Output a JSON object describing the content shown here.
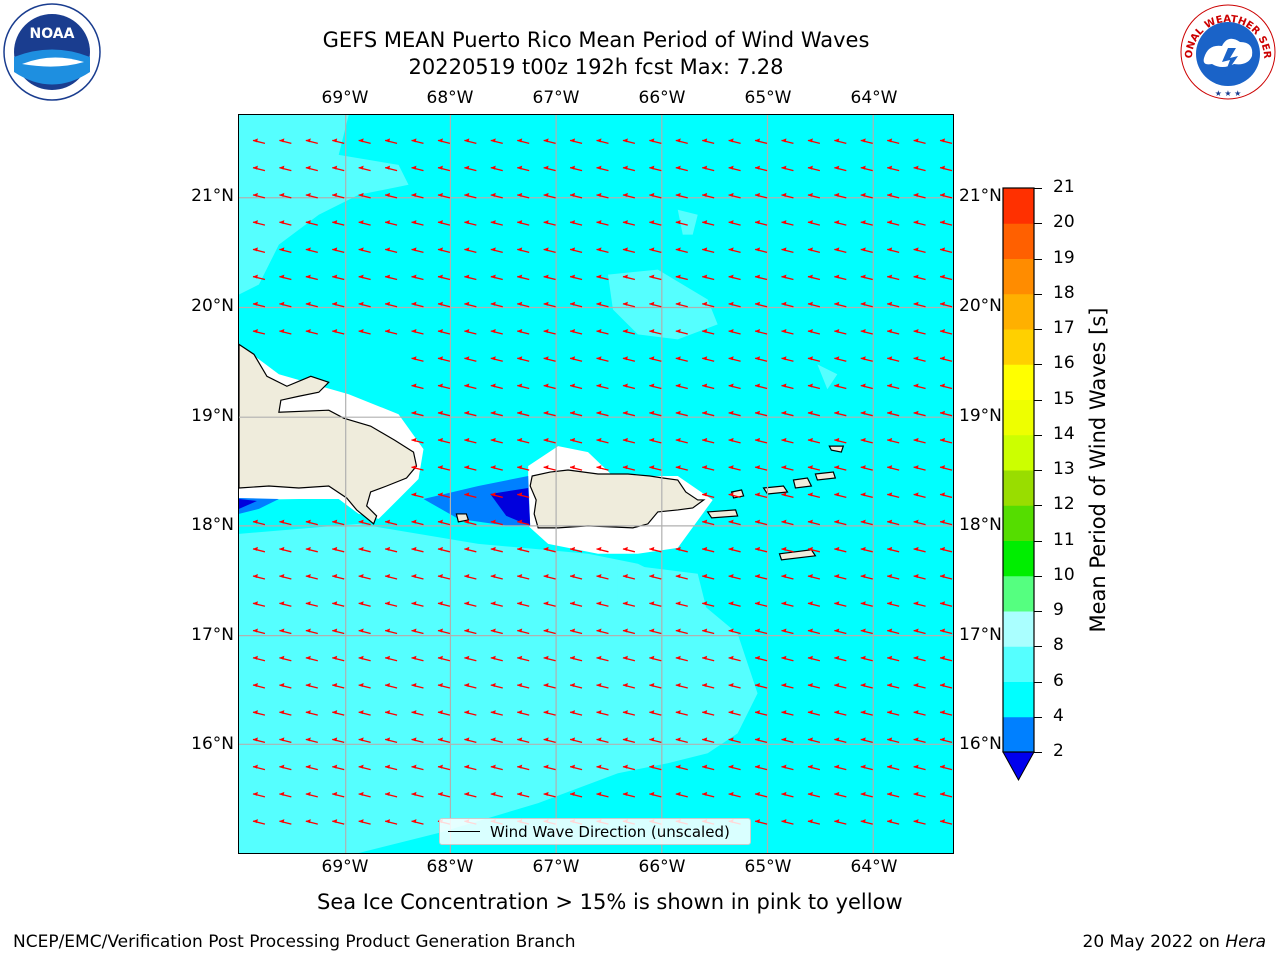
{
  "header": {
    "title_line1": "GEFS MEAN Puerto Rico Mean Period of Wind Waves",
    "title_line2": "20220519 t00z 192h fcst   Max: 7.28"
  },
  "logos": {
    "left": "NOAA",
    "left_ring": "NATIONAL OCEANIC AND ATMOSPHERIC ADMINISTRATION · U.S. DEPARTMENT OF COMMERCE",
    "right_ring": "NATIONAL WEATHER SERVICE"
  },
  "map": {
    "lon_labels": [
      "69°W",
      "68°W",
      "67°W",
      "66°W",
      "65°W",
      "64°W"
    ],
    "lat_labels": [
      "21°N",
      "20°N",
      "19°N",
      "18°N",
      "17°N",
      "16°N"
    ],
    "field_colors": {
      "period_4_6": "#00ffff",
      "period_6_8": "#55ffff",
      "period_2_4": "#0080ff",
      "period_lt_2": "#0000dd",
      "land": "#efecdc",
      "no_data": "#ffffff",
      "arrows": "#ff0000"
    },
    "legend_label": "Wind Wave Direction (unscaled)"
  },
  "colorbar": {
    "label": "Mean Period of Wind Waves [s]",
    "ticks": [
      "2",
      "4",
      "6",
      "8",
      "9",
      "10",
      "11",
      "12",
      "13",
      "14",
      "15",
      "16",
      "17",
      "18",
      "19",
      "20",
      "21"
    ],
    "colors": [
      "#0080ff",
      "#00ffff",
      "#55ffff",
      "#aaffff",
      "#55ff80",
      "#00ee00",
      "#55dd00",
      "#99dd00",
      "#ccff00",
      "#eeff00",
      "#ffff00",
      "#ffd000",
      "#ffb000",
      "#ff8c00",
      "#ff6000",
      "#ff3000",
      "#ff0000"
    ],
    "under_color": "#0000ee"
  },
  "subtitle": "Sea Ice Concentration > 15% is shown in pink to yellow",
  "footer": {
    "left": "NCEP/EMC/Verification Post Processing Product Generation Branch",
    "right_date": "20 May 2022 on ",
    "right_host": "Hera"
  }
}
